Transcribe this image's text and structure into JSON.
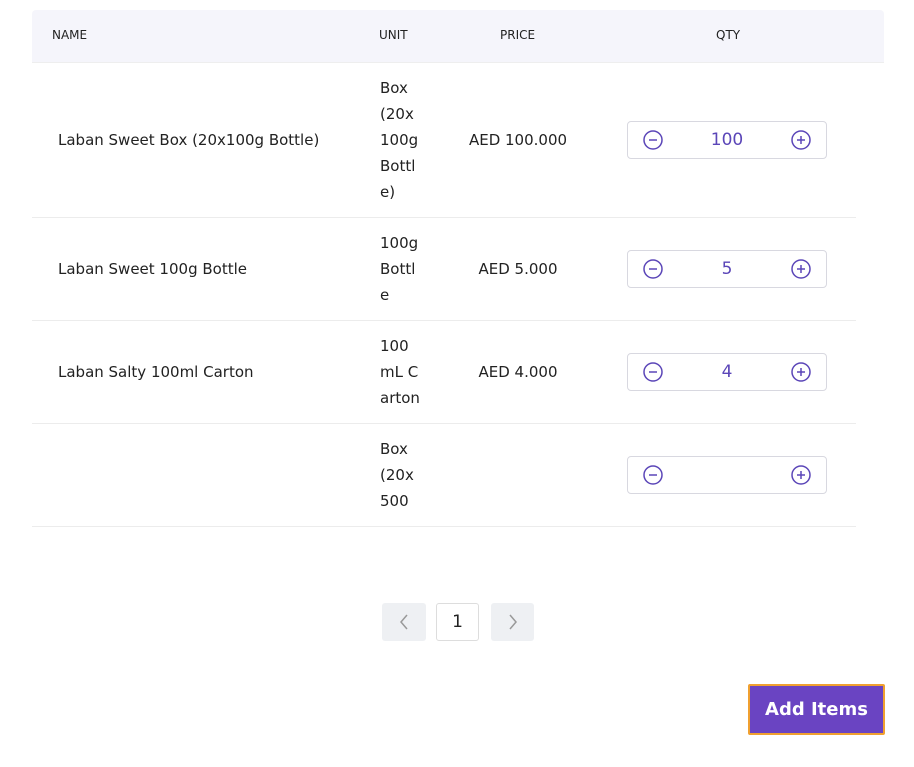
{
  "table": {
    "headers": [
      "NAME",
      "UNIT",
      "PRICE",
      "QTY"
    ],
    "rows": [
      {
        "name": "Laban Sweet Box (20x100g Bottle)",
        "unit": "Box (20x100g Bottle)",
        "price": "AED 100.000",
        "qty": 100
      },
      {
        "name": "Laban Sweet 100g Bottle",
        "unit": "100g Bottle",
        "price": "AED 5.000",
        "qty": 5
      },
      {
        "name": "Laban Salty 100ml Carton",
        "unit": "100mL Carton",
        "price": "AED 4.000",
        "qty": 4
      },
      {
        "unit": "Box (20x500"
      }
    ]
  },
  "pagination": {
    "page": 1
  },
  "button": {
    "label": "Add Items"
  }
}
